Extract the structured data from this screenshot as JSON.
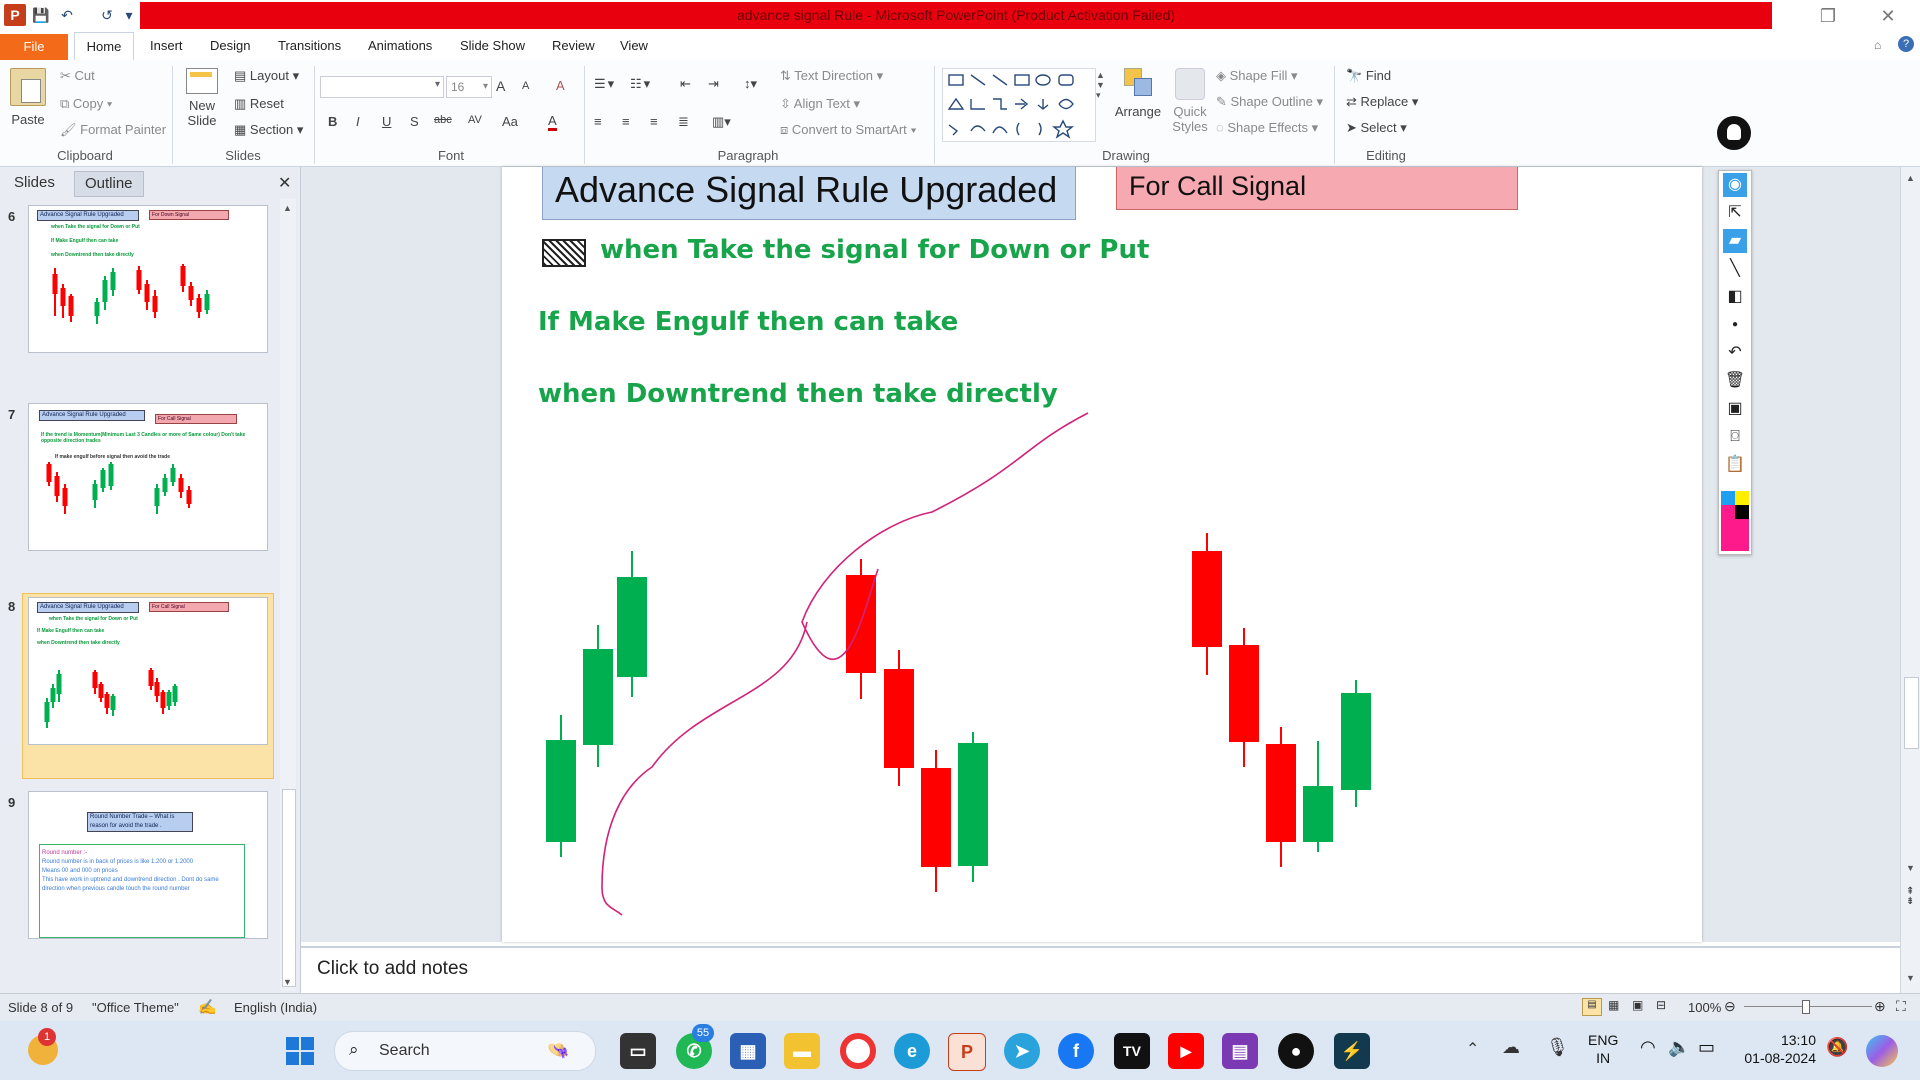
{
  "window": {
    "title": "advance signal Rule  -  Microsoft PowerPoint (Product Activation Failed)",
    "quick_access": {
      "app_icon": "P",
      "save": "💾",
      "undo": "↶",
      "redo": "↺",
      "more": "▾"
    },
    "controls": {
      "restore": "❐",
      "close": "✕"
    }
  },
  "tabs": [
    "File",
    "Home",
    "Insert",
    "Design",
    "Transitions",
    "Animations",
    "Slide Show",
    "Review",
    "View"
  ],
  "ribbon": {
    "clipboard": {
      "paste": "Paste",
      "cut": "Cut",
      "copy": "Copy",
      "format_painter": "Format Painter",
      "label": "Clipboard"
    },
    "slides": {
      "new_slide": "New",
      "new_slide2": "Slide",
      "layout": "Layout",
      "reset": "Reset",
      "section": "Section",
      "label": "Slides"
    },
    "font": {
      "font_size": "16",
      "label": "Font",
      "bold": "B",
      "italic": "I",
      "underline": "U",
      "shadow": "S",
      "strike": "abc",
      "spacing": "AV",
      "case": "Aa",
      "color": "A",
      "grow": "A",
      "shrink": "A",
      "clear": "A"
    },
    "paragraph": {
      "text_direction": "Text Direction",
      "align_text": "Align Text",
      "convert_smartart": "Convert to SmartArt",
      "label": "Paragraph"
    },
    "drawing": {
      "arrange": "Arrange",
      "quick_styles": "Quick",
      "quick_styles2": "Styles",
      "shape_fill": "Shape Fill",
      "shape_outline": "Shape Outline",
      "shape_effects": "Shape Effects",
      "label": "Drawing"
    },
    "editing": {
      "find": "Find",
      "replace": "Replace",
      "select": "Select",
      "label": "Editing"
    }
  },
  "panel": {
    "tab_slides": "Slides",
    "tab_outline": "Outline",
    "close": "✕"
  },
  "thumbnails": [
    {
      "num": "6",
      "title": "Advance Signal Rule Upgraded",
      "tag": "For Down Signal",
      "lines": [
        "when Take the signal for Down or Put",
        "If Make Engulf then can take",
        "when Downtrend then take directly"
      ]
    },
    {
      "num": "7",
      "title": "Advance Signal Rule Upgraded",
      "tag": "For Call Signal",
      "lines": [
        "If the trend is Momentum(Minimum  Last 3 Candles or more of Same colour) Don't take opposite direction trades",
        "If make engulf before signal then avoid the trade"
      ]
    },
    {
      "num": "8",
      "title": "Advance Signal Rule Upgraded",
      "tag": "For Call Signal",
      "lines": [
        "when Take the signal for Down or Put",
        "If Make Engulf then can take",
        "when Downtrend then take directly"
      ]
    },
    {
      "num": "9",
      "title": "Round Number Trade – What is reason for avoid the trade .",
      "lines": [
        "Round number :-",
        "Round number is in back of prices is like 1.200 or 1.2000",
        "Means 00 and 000 on prices",
        "This have work in uptrend and downtrend direction . Dont do same direction when previous candle touch the round number"
      ]
    }
  ],
  "slide": {
    "title": "Advance Signal Rule Upgraded",
    "signal_tag": "For  Call  Signal",
    "line1": "when Take the signal for Down or Put",
    "line2": "If Make Engulf then can take",
    "line3": "when Downtrend then take directly",
    "colors": {
      "bull": "#00b050",
      "bear": "#ff0000",
      "text_green": "#17a44a",
      "annotation": "#d0237a"
    }
  },
  "notes": {
    "placeholder": "Click to add notes"
  },
  "status": {
    "slide_info": "Slide 8 of 9",
    "theme": "\"Office Theme\"",
    "language": "English (India)",
    "zoom": "100%"
  },
  "taskbar": {
    "search": "Search",
    "notification_count": "1",
    "whatsapp_badge": "55",
    "lang1": "ENG",
    "lang2": "IN",
    "time": "13:10",
    "date": "01-08-2024"
  }
}
